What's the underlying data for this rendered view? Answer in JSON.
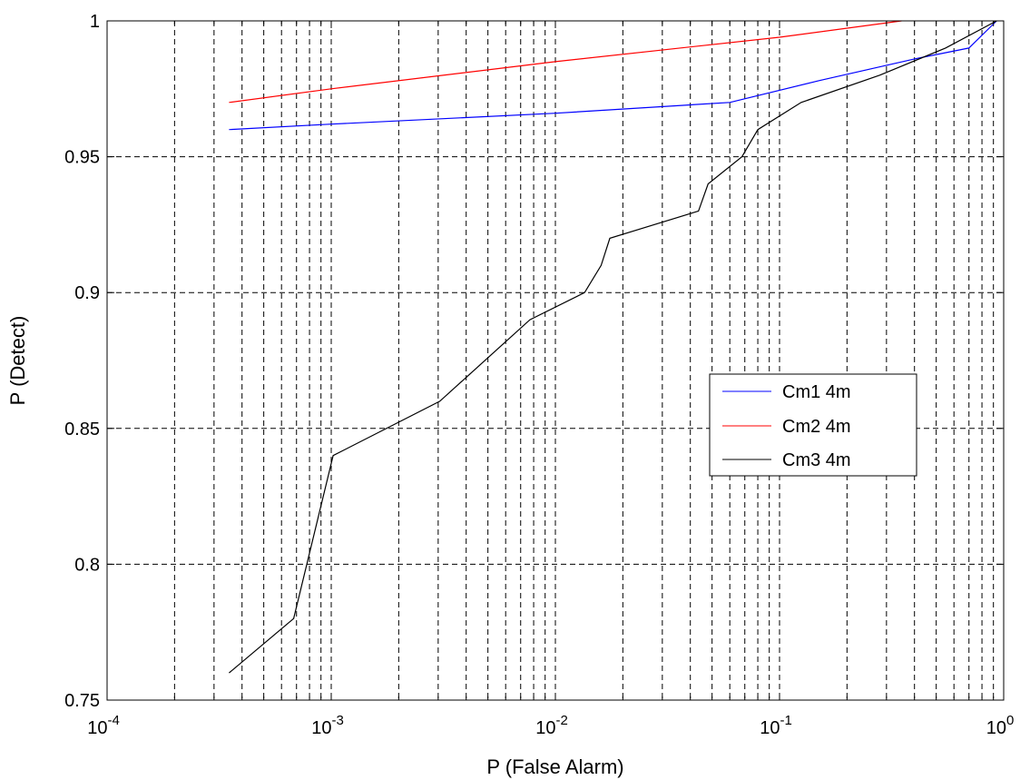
{
  "chart_data": {
    "type": "line",
    "xscale": "log",
    "xlim": [
      0.0001,
      1
    ],
    "ylim": [
      0.75,
      1
    ],
    "xlabel": "P (False Alarm)",
    "ylabel": "P (Detect)",
    "title": "",
    "grid": true,
    "legend_position": "center-right",
    "x_ticks": [
      {
        "base": "10",
        "exp": "-4",
        "value": 0.0001
      },
      {
        "base": "10",
        "exp": "-3",
        "value": 0.001
      },
      {
        "base": "10",
        "exp": "-2",
        "value": 0.01
      },
      {
        "base": "10",
        "exp": "-1",
        "value": 0.1
      },
      {
        "base": "10",
        "exp": "0",
        "value": 1
      }
    ],
    "y_ticks": [
      {
        "label": "0.75",
        "value": 0.75
      },
      {
        "label": "0.8",
        "value": 0.8
      },
      {
        "label": "0.85",
        "value": 0.85
      },
      {
        "label": "0.9",
        "value": 0.9
      },
      {
        "label": "0.95",
        "value": 0.95
      },
      {
        "label": "1",
        "value": 1.0
      }
    ],
    "series": [
      {
        "name": "Cm1 4m",
        "color": "#0000ff",
        "points": [
          [
            0.00035,
            0.96
          ],
          [
            0.001,
            0.962
          ],
          [
            0.01,
            0.966
          ],
          [
            0.06,
            0.97
          ],
          [
            0.15,
            0.978
          ],
          [
            0.4,
            0.986
          ],
          [
            0.7,
            0.99
          ],
          [
            0.93,
            1.0
          ]
        ]
      },
      {
        "name": "Cm2 4m",
        "color": "#ff0000",
        "points": [
          [
            0.00035,
            0.97
          ],
          [
            0.001,
            0.975
          ],
          [
            0.01,
            0.985
          ],
          [
            0.1,
            0.994
          ],
          [
            0.35,
            1.0
          ]
        ]
      },
      {
        "name": "Cm3 4m",
        "color": "#000000",
        "points": [
          [
            0.00035,
            0.76
          ],
          [
            0.00068,
            0.78
          ],
          [
            0.00102,
            0.84
          ],
          [
            0.00305,
            0.86
          ],
          [
            0.0077,
            0.89
          ],
          [
            0.0135,
            0.9
          ],
          [
            0.016,
            0.91
          ],
          [
            0.0175,
            0.92
          ],
          [
            0.0435,
            0.93
          ],
          [
            0.048,
            0.94
          ],
          [
            0.068,
            0.95
          ],
          [
            0.08,
            0.96
          ],
          [
            0.125,
            0.97
          ],
          [
            0.28,
            0.98
          ],
          [
            0.55,
            0.99
          ],
          [
            0.93,
            1.0
          ]
        ]
      }
    ]
  }
}
